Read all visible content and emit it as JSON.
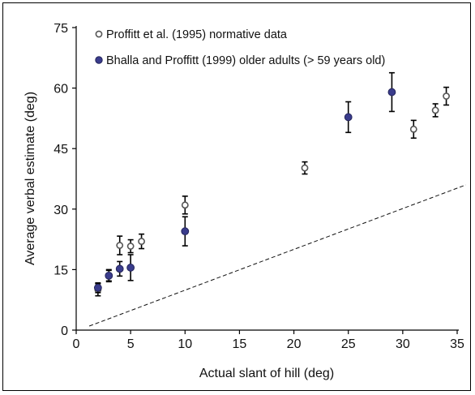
{
  "chart_data": {
    "type": "scatter",
    "xlabel": "Actual slant of hill (deg)",
    "ylabel": "Average verbal estimate (deg)",
    "xlim": [
      0,
      35
    ],
    "ylim": [
      0,
      75
    ],
    "xticks": [
      0,
      5,
      10,
      15,
      20,
      25,
      30,
      35
    ],
    "yticks": [
      0,
      15,
      30,
      45,
      60,
      75
    ],
    "grid": false,
    "legend_position": "top-left",
    "reference_line": {
      "style": "dashed",
      "x": [
        1.2,
        35.8
      ],
      "y": [
        1.0,
        36.0
      ]
    },
    "series": [
      {
        "name": "Proffitt et al. (1995) normative data",
        "marker": "open-circle",
        "color": "#ffffff",
        "points": [
          {
            "x": 2,
            "y": 10,
            "err": 1.5
          },
          {
            "x": 3,
            "y": 13.5,
            "err": 1.5
          },
          {
            "x": 4,
            "y": 21,
            "err": 2.3
          },
          {
            "x": 5,
            "y": 20.8,
            "err": 1.6
          },
          {
            "x": 6,
            "y": 22,
            "err": 1.8
          },
          {
            "x": 10,
            "y": 31,
            "err": 2.2
          },
          {
            "x": 21,
            "y": 40.2,
            "err": 1.5
          },
          {
            "x": 31,
            "y": 49.8,
            "err": 2.2
          },
          {
            "x": 33,
            "y": 54.5,
            "err": 1.6
          },
          {
            "x": 34,
            "y": 58,
            "err": 2.2
          }
        ]
      },
      {
        "name": "Bhalla and Proffitt (1999) older adults (> 59 years old)",
        "marker": "filled-circle",
        "color": "#3a3c8c",
        "points": [
          {
            "x": 2,
            "y": 10.5,
            "err": 1.2
          },
          {
            "x": 3,
            "y": 13.5,
            "err": 1.3
          },
          {
            "x": 4,
            "y": 15.2,
            "err": 1.8
          },
          {
            "x": 5,
            "y": 15.5,
            "err": 3.2
          },
          {
            "x": 10,
            "y": 24.5,
            "err": 3.6
          },
          {
            "x": 25,
            "y": 52.8,
            "err": 3.8
          },
          {
            "x": 29,
            "y": 59,
            "err": 4.8
          }
        ]
      }
    ]
  }
}
